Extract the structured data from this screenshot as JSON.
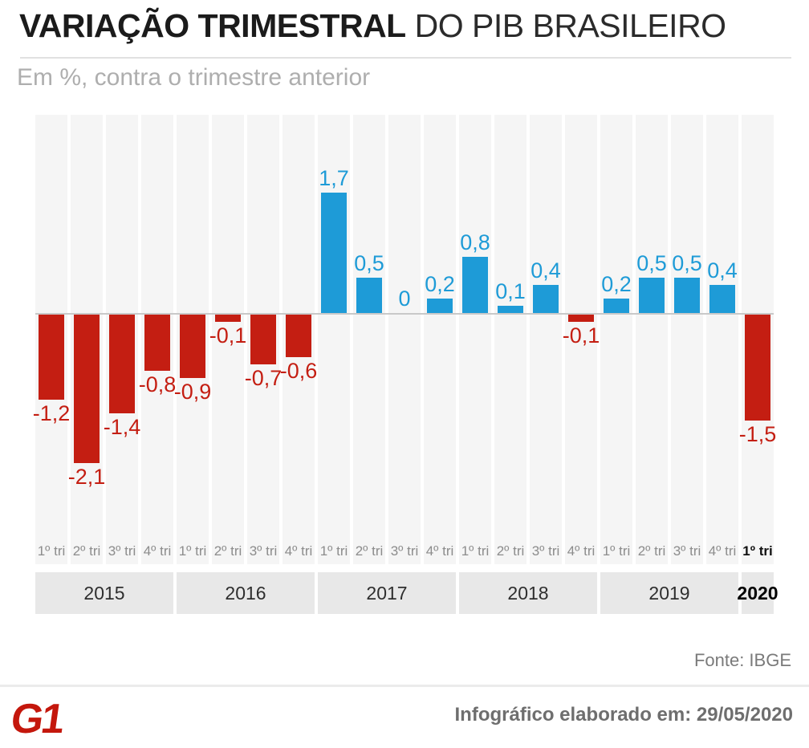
{
  "header": {
    "title_bold": "VARIAÇÃO TRIMESTRAL",
    "title_regular": " DO PIB BRASILEIRO",
    "subtitle": "Em %, contra o trimestre anterior"
  },
  "chart_data": {
    "type": "bar",
    "title": "VARIAÇÃO TRIMESTRAL DO PIB BRASILEIRO",
    "subtitle": "Em %, contra o trimestre anterior",
    "unit": "%",
    "categories": [
      "1º tri",
      "2º tri",
      "3º tri",
      "4º tri",
      "1º tri",
      "2º tri",
      "3º tri",
      "4º tri",
      "1º tri",
      "2º tri",
      "3º tri",
      "4º tri",
      "1º tri",
      "2º tri",
      "3º tri",
      "4º tri",
      "1º tri",
      "2º tri",
      "3º tri",
      "4º tri",
      "1º tri"
    ],
    "values": [
      -1.2,
      -2.1,
      -1.4,
      -0.8,
      -0.9,
      -0.1,
      -0.7,
      -0.6,
      1.7,
      0.5,
      0,
      0.2,
      0.8,
      0.1,
      0.4,
      -0.1,
      0.2,
      0.5,
      0.5,
      0.4,
      -1.5
    ],
    "value_labels": [
      "-1,2",
      "-2,1",
      "-1,4",
      "-0,8",
      "-0,9",
      "-0,1",
      "-0,7",
      "-0,6",
      "1,7",
      "0,5",
      "0",
      "0,2",
      "0,8",
      "0,1",
      "0,4",
      "-0,1",
      "0,2",
      "0,5",
      "0,5",
      "0,4",
      "-1,5"
    ],
    "years": [
      {
        "label": "2015",
        "span": 4
      },
      {
        "label": "2016",
        "span": 4
      },
      {
        "label": "2017",
        "span": 4
      },
      {
        "label": "2018",
        "span": 4
      },
      {
        "label": "2019",
        "span": 4
      },
      {
        "label": "2020",
        "span": 1,
        "bold": true
      }
    ],
    "highlight_last_quarter": true,
    "ylim": [
      -2.8,
      2.8
    ],
    "grid": false,
    "legend": "none",
    "colors": {
      "positive": "#1e9bd7",
      "negative": "#c41e12",
      "stripe": "#f5f5f5",
      "year_band": "#e8e8e8",
      "baseline": "#c9c9c9",
      "quarter_label": "#8c8c8c"
    }
  },
  "footer": {
    "source": "Fonte: IBGE",
    "logo_text": "G1",
    "logo_color": "#c4170c",
    "credit": "Infográfico elaborado em: 29/05/2020"
  }
}
